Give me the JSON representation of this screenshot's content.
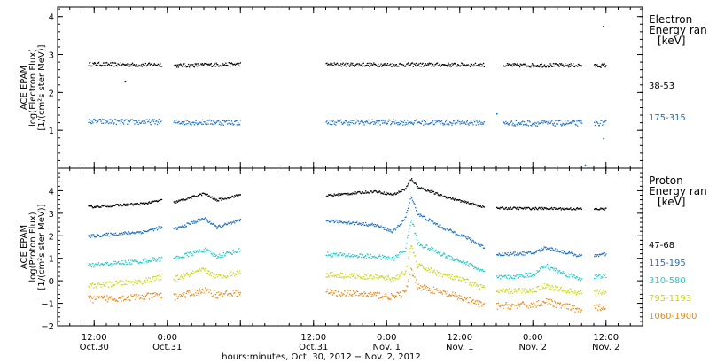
{
  "chart_data": [
    {
      "type": "scatter",
      "panel": "electron",
      "ylabel_lines": [
        "ACE EPAM",
        "log(Electron Flux)",
        "[1/(cm²s ster MeV)]"
      ],
      "ylim": [
        0,
        4.25
      ],
      "yticks": [
        {
          "value": 1,
          "label": "1"
        },
        {
          "value": 2,
          "label": "2"
        },
        {
          "value": 3,
          "label": "3"
        },
        {
          "value": 4,
          "label": "4"
        }
      ],
      "legend_title": [
        "Electron",
        "Energy ran",
        "[keV]"
      ],
      "legend_placement": "right",
      "series": [
        {
          "name": "38-53",
          "color": "#000000",
          "segments": [
            [
              [
                5,
                2.76
              ],
              [
                14,
                2.74
              ],
              [
                17,
                2.75
              ]
            ],
            [
              [
                19,
                2.72
              ],
              [
                30,
                2.76
              ]
            ],
            [
              [
                44,
                2.75
              ],
              [
                70,
                2.74
              ]
            ],
            [
              [
                73,
                2.73
              ],
              [
                86,
                2.73
              ]
            ],
            [
              [
                88,
                2.71
              ],
              [
                90,
                2.73
              ]
            ]
          ],
          "noise": 0.05,
          "outliers": [
            [
              89.5,
              3.76
            ],
            [
              11,
              2.3
            ]
          ]
        },
        {
          "name": "175-315",
          "color": "#1a6fc4",
          "segments": [
            [
              [
                5,
                1.25
              ],
              [
                14,
                1.23
              ],
              [
                17,
                1.24
              ]
            ],
            [
              [
                19,
                1.23
              ],
              [
                30,
                1.22
              ]
            ],
            [
              [
                44,
                1.23
              ],
              [
                70,
                1.22
              ]
            ],
            [
              [
                73,
                1.2
              ],
              [
                86,
                1.2
              ]
            ],
            [
              [
                88,
                1.2
              ],
              [
                90,
                1.22
              ]
            ]
          ],
          "noise": 0.07,
          "outliers": [
            [
              72,
              1.45
            ],
            [
              86.5,
              0.1
            ],
            [
              89.5,
              0.8
            ]
          ]
        }
      ]
    },
    {
      "type": "scatter",
      "panel": "proton",
      "ylabel_lines": [
        "ACE EPAM",
        "log(Proton Flux)",
        "[1/(cm²s ster MeV)]"
      ],
      "ylim": [
        -2,
        5
      ],
      "yticks": [
        {
          "value": -2,
          "label": "−2"
        },
        {
          "value": -1,
          "label": "−1"
        },
        {
          "value": 0,
          "label": "0"
        },
        {
          "value": 1,
          "label": "1"
        },
        {
          "value": 2,
          "label": "2"
        },
        {
          "value": 3,
          "label": "3"
        },
        {
          "value": 4,
          "label": "4"
        }
      ],
      "legend_title": [
        "Proton",
        "Energy ran",
        "[keV]"
      ],
      "legend_placement": "right",
      "series": [
        {
          "name": "47-68",
          "color": "#000000",
          "segments": [
            [
              [
                5,
                3.3
              ],
              [
                14,
                3.45
              ],
              [
                17,
                3.6
              ]
            ],
            [
              [
                19,
                3.5
              ],
              [
                24,
                3.9
              ],
              [
                26,
                3.6
              ],
              [
                30,
                3.85
              ]
            ],
            [
              [
                44,
                3.8
              ],
              [
                52,
                4.0
              ],
              [
                55,
                3.85
              ],
              [
                57,
                4.1
              ],
              [
                58,
                4.55
              ],
              [
                59,
                4.2
              ],
              [
                63,
                3.8
              ],
              [
                67,
                3.5
              ],
              [
                70,
                3.3
              ]
            ],
            [
              [
                72,
                3.25
              ],
              [
                86,
                3.22
              ]
            ],
            [
              [
                88,
                3.2
              ],
              [
                90,
                3.22
              ]
            ]
          ],
          "noise": 0.05,
          "outliers": []
        },
        {
          "name": "115-195",
          "color": "#1a6fc4",
          "segments": [
            [
              [
                5,
                2.0
              ],
              [
                14,
                2.2
              ],
              [
                17,
                2.4
              ]
            ],
            [
              [
                19,
                2.3
              ],
              [
                24,
                2.8
              ],
              [
                26,
                2.4
              ],
              [
                30,
                2.7
              ]
            ],
            [
              [
                44,
                2.7
              ],
              [
                52,
                2.5
              ],
              [
                55,
                2.2
              ],
              [
                57,
                2.8
              ],
              [
                58,
                3.8
              ],
              [
                59,
                3.0
              ],
              [
                63,
                2.4
              ],
              [
                67,
                1.95
              ],
              [
                70,
                1.5
              ]
            ],
            [
              [
                72,
                1.2
              ],
              [
                78,
                1.25
              ],
              [
                80,
                1.5
              ],
              [
                83,
                1.3
              ],
              [
                86,
                1.1
              ]
            ],
            [
              [
                88,
                1.15
              ],
              [
                90,
                1.2
              ]
            ]
          ],
          "noise": 0.07,
          "outliers": []
        },
        {
          "name": "310-580",
          "color": "#22c9c9",
          "segments": [
            [
              [
                5,
                0.7
              ],
              [
                14,
                0.9
              ],
              [
                17,
                1.0
              ]
            ],
            [
              [
                19,
                1.0
              ],
              [
                24,
                1.4
              ],
              [
                26,
                1.1
              ],
              [
                30,
                1.4
              ]
            ],
            [
              [
                44,
                1.2
              ],
              [
                52,
                1.1
              ],
              [
                55,
                1.0
              ],
              [
                57,
                1.4
              ],
              [
                58,
                2.8
              ],
              [
                59,
                1.7
              ],
              [
                63,
                1.2
              ],
              [
                67,
                0.8
              ],
              [
                70,
                0.4
              ]
            ],
            [
              [
                72,
                0.15
              ],
              [
                78,
                0.3
              ],
              [
                80,
                0.7
              ],
              [
                83,
                0.35
              ],
              [
                86,
                0.1
              ]
            ],
            [
              [
                88,
                0.2
              ],
              [
                90,
                0.25
              ]
            ]
          ],
          "noise": 0.1,
          "outliers": []
        },
        {
          "name": "795-1193",
          "color": "#c8d810",
          "segments": [
            [
              [
                5,
                -0.2
              ],
              [
                14,
                0.0
              ],
              [
                17,
                0.2
              ]
            ],
            [
              [
                19,
                0.1
              ],
              [
                24,
                0.5
              ],
              [
                26,
                0.2
              ],
              [
                30,
                0.4
              ]
            ],
            [
              [
                44,
                0.3
              ],
              [
                52,
                0.2
              ],
              [
                55,
                0.1
              ],
              [
                57,
                0.4
              ],
              [
                58,
                1.6
              ],
              [
                59,
                0.7
              ],
              [
                63,
                0.3
              ],
              [
                67,
                0.0
              ],
              [
                70,
                -0.3
              ]
            ],
            [
              [
                72,
                -0.45
              ],
              [
                78,
                -0.4
              ],
              [
                80,
                -0.2
              ],
              [
                83,
                -0.4
              ],
              [
                86,
                -0.5
              ]
            ],
            [
              [
                88,
                -0.5
              ],
              [
                90,
                -0.45
              ]
            ]
          ],
          "noise": 0.12,
          "outliers": []
        },
        {
          "name": "1060-1900",
          "color": "#e88a1a",
          "segments": [
            [
              [
                5,
                -0.8
              ],
              [
                14,
                -0.7
              ],
              [
                17,
                -0.6
              ]
            ],
            [
              [
                19,
                -0.7
              ],
              [
                24,
                -0.4
              ],
              [
                26,
                -0.6
              ],
              [
                30,
                -0.5
              ]
            ],
            [
              [
                44,
                -0.5
              ],
              [
                52,
                -0.6
              ],
              [
                55,
                -0.7
              ],
              [
                57,
                -0.5
              ],
              [
                58,
                0.5
              ],
              [
                59,
                -0.2
              ],
              [
                63,
                -0.5
              ],
              [
                67,
                -0.8
              ],
              [
                70,
                -1.1
              ]
            ],
            [
              [
                72,
                -1.1
              ],
              [
                78,
                -1.05
              ],
              [
                80,
                -0.9
              ],
              [
                83,
                -1.1
              ],
              [
                86,
                -1.3
              ]
            ],
            [
              [
                88,
                -1.2
              ],
              [
                90,
                -1.1
              ]
            ]
          ],
          "noise": 0.15,
          "outliers": []
        }
      ]
    }
  ],
  "xaxis": {
    "xlim": [
      0,
      96
    ],
    "ticks": [
      {
        "value": 6,
        "top": "12:00",
        "bottom": "Oct.30"
      },
      {
        "value": 18,
        "top": "0:00",
        "bottom": "Oct.31"
      },
      {
        "value": 30,
        "top": "",
        "bottom": ""
      },
      {
        "value": 42,
        "top": "12:00",
        "bottom": "Oct.31"
      },
      {
        "value": 54,
        "top": "0:00",
        "bottom": "Nov. 1"
      },
      {
        "value": 66,
        "top": "12:00",
        "bottom": "Nov. 1"
      },
      {
        "value": 78,
        "top": "0:00",
        "bottom": "Nov. 2"
      },
      {
        "value": 90,
        "top": "12:00",
        "bottom": "Nov. 2"
      }
    ],
    "minor_step": 2,
    "label": "hours:minutes, Oct. 30, 2012 − Nov. 2, 2012"
  }
}
